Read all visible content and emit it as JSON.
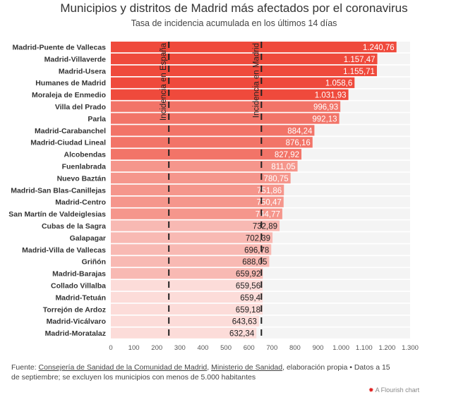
{
  "chart_data": {
    "type": "bar",
    "orientation": "horizontal",
    "title": "Municipios y distritos de Madrid más afectados por el coronavirus",
    "subtitle": "Tasa de incidencia acumulada en los últimos 14 días",
    "categories": [
      "Madrid-Puente de Vallecas",
      "Madrid-Villaverde",
      "Madrid-Usera",
      "Humanes de Madrid",
      "Moraleja de Enmedio",
      "Villa del Prado",
      "Parla",
      "Madrid-Carabanchel",
      "Madrid-Ciudad Lineal",
      "Alcobendas",
      "Fuenlabrada",
      "Nuevo Baztán",
      "Madrid-San Blas-Canillejas",
      "Madrid-Centro",
      "San Martín de Valdeiglesias",
      "Cubas de la Sagra",
      "Galapagar",
      "Madrid-Villa de Vallecas",
      "Griñón",
      "Madrid-Barajas",
      "Collado Villalba",
      "Madrid-Tetuán",
      "Torrejón de Ardoz",
      "Madrid-Vicálvaro",
      "Madrid-Moratalaz"
    ],
    "values": [
      1240.76,
      1157.47,
      1155.71,
      1058.6,
      1031.93,
      996.93,
      992.13,
      884.24,
      876.16,
      827.92,
      811.05,
      780.75,
      751.86,
      750.47,
      744.77,
      732.89,
      702.39,
      696.78,
      688.05,
      659.92,
      659.56,
      659.4,
      659.18,
      643.63,
      632.34
    ],
    "value_labels": [
      "1.240,76",
      "1.157,47",
      "1.155,71",
      "1.058,6",
      "1.031,93",
      "996,93",
      "992,13",
      "884,24",
      "876,16",
      "827,92",
      "811,05",
      "780,75",
      "751,86",
      "750,47",
      "744,77",
      "732,89",
      "702,39",
      "696,78",
      "688,05",
      "659,92",
      "659,56",
      "659,4",
      "659,18",
      "643,63",
      "632,34"
    ],
    "xlim": [
      0,
      1300
    ],
    "xticks": [
      0,
      100,
      200,
      300,
      400,
      500,
      600,
      700,
      800,
      900,
      1000,
      1100,
      1200,
      1300
    ],
    "xtick_labels": [
      "0",
      "100",
      "200",
      "300",
      "400",
      "500",
      "600",
      "700",
      "800",
      "900",
      "1.000",
      "1.100",
      "1.200",
      "1.300"
    ],
    "band_colors": [
      "#ef4a3c",
      "#f27468",
      "#f5968c",
      "#f8b9b3",
      "#fcdcd9"
    ],
    "reference_lines": [
      {
        "label": "Incidencia en España",
        "value": 252
      },
      {
        "label": "Incidencia en Madrid",
        "value": 654
      }
    ]
  },
  "footer": {
    "prefix": "Fuente: ",
    "link1": "Consejería de Sanidad de la Comunidad de Madrid",
    "sep": ", ",
    "link2": "Ministerio de Sanidad",
    "suffix": ", elaboración propia • Datos a 15 de septiembre; se excluyen los municipios con menos de 5.000 habitantes"
  },
  "credit": "A Flourish chart"
}
